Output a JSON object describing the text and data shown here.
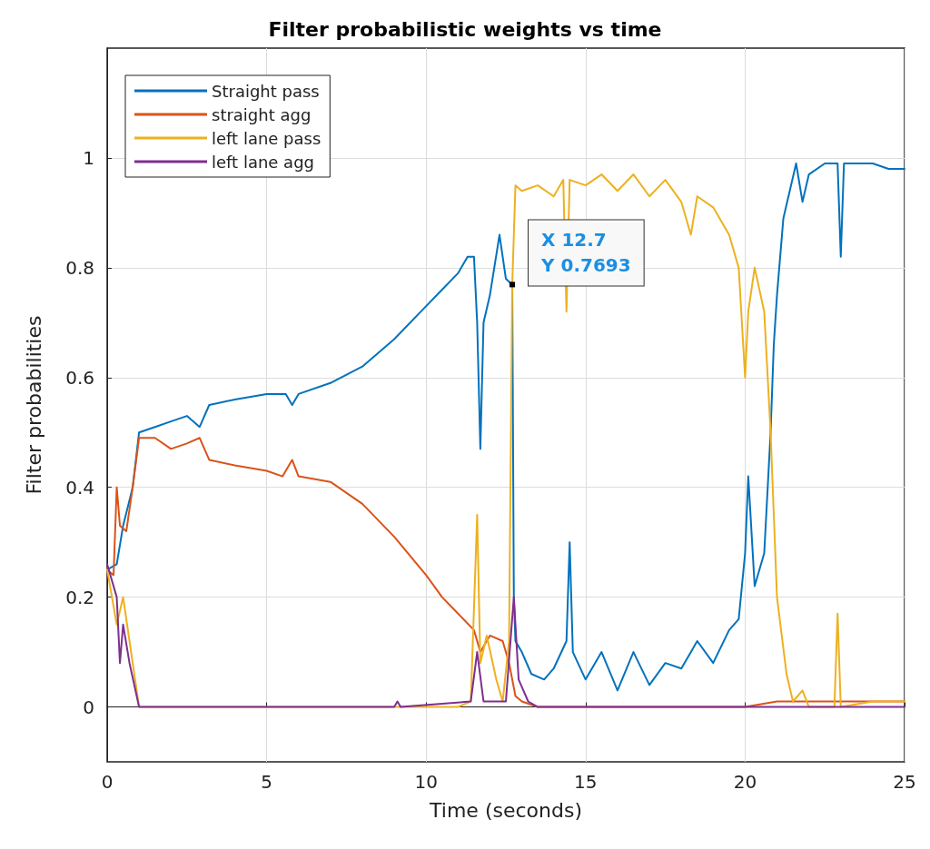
{
  "chart_data": {
    "type": "line",
    "title": "Filter probabilistic weights vs time",
    "xlabel": "Time (seconds)",
    "ylabel": "Filter probabilities",
    "xlim": [
      0,
      25
    ],
    "xticks": [
      0,
      5,
      10,
      15,
      20,
      25
    ],
    "ylim": [
      -0.1,
      1.2
    ],
    "yticks": [
      0,
      0.2,
      0.4,
      0.6,
      0.8,
      1
    ],
    "grid": true,
    "legend": "top left",
    "marker": "none",
    "line_style": "solid",
    "annotations": [
      {
        "text": "X 12.7\nY 0.7693",
        "x": 12.7,
        "y": 0.7693
      }
    ],
    "series": [
      {
        "name": "Straight pass",
        "color": "#0072bd",
        "x": [
          0,
          0.3,
          0.5,
          0.8,
          1,
          1.5,
          2,
          2.5,
          2.9,
          3.2,
          4,
          5,
          5.6,
          5.8,
          6,
          7,
          8,
          9,
          10,
          10.5,
          11,
          11.3,
          11.5,
          11.6,
          11.7,
          11.8,
          12,
          12.3,
          12.5,
          12.7,
          12.75,
          12.8,
          13,
          13.3,
          13.7,
          14,
          14.4,
          14.5,
          14.6,
          15,
          15.5,
          16,
          16.5,
          17,
          17.5,
          18,
          18.5,
          19,
          19.5,
          19.8,
          20,
          20.1,
          20.3,
          20.6,
          20.8,
          20.9,
          21,
          21.2,
          21.4,
          21.6,
          21.8,
          22,
          22.5,
          22.9,
          23,
          23.1,
          24,
          24.5,
          25
        ],
        "values": [
          0.25,
          0.26,
          0.33,
          0.4,
          0.5,
          0.51,
          0.52,
          0.53,
          0.51,
          0.55,
          0.56,
          0.57,
          0.57,
          0.55,
          0.57,
          0.59,
          0.62,
          0.67,
          0.73,
          0.76,
          0.79,
          0.82,
          0.82,
          0.7,
          0.47,
          0.7,
          0.75,
          0.86,
          0.78,
          0.7693,
          0.2,
          0.12,
          0.1,
          0.06,
          0.05,
          0.07,
          0.12,
          0.3,
          0.1,
          0.05,
          0.1,
          0.03,
          0.1,
          0.04,
          0.08,
          0.07,
          0.12,
          0.08,
          0.14,
          0.16,
          0.28,
          0.42,
          0.22,
          0.28,
          0.5,
          0.66,
          0.75,
          0.89,
          0.94,
          0.99,
          0.92,
          0.97,
          0.99,
          0.99,
          0.82,
          0.99,
          0.99,
          0.98,
          0.98
        ]
      },
      {
        "name": "straight agg",
        "color": "#d95319",
        "x": [
          0,
          0.2,
          0.3,
          0.4,
          0.6,
          0.8,
          1,
          1.5,
          2,
          2.5,
          2.9,
          3.2,
          4,
          5,
          5.5,
          5.8,
          6,
          7,
          8,
          9,
          10,
          10.5,
          11,
          11.5,
          11.7,
          12,
          12.4,
          12.6,
          12.8,
          13,
          13.5,
          14,
          20,
          21,
          25
        ],
        "values": [
          0.25,
          0.24,
          0.4,
          0.33,
          0.32,
          0.4,
          0.49,
          0.49,
          0.47,
          0.48,
          0.49,
          0.45,
          0.44,
          0.43,
          0.42,
          0.45,
          0.42,
          0.41,
          0.37,
          0.31,
          0.24,
          0.2,
          0.17,
          0.14,
          0.1,
          0.13,
          0.12,
          0.08,
          0.02,
          0.01,
          0,
          0,
          0,
          0.01,
          0.01
        ]
      },
      {
        "name": "left lane pass",
        "color": "#edb120",
        "x": [
          0,
          0.3,
          0.5,
          0.7,
          1,
          11,
          11.4,
          11.6,
          11.7,
          11.9,
          12.2,
          12.4,
          12.6,
          12.7,
          12.8,
          13,
          13.5,
          14,
          14.3,
          14.4,
          14.5,
          15,
          15.5,
          16,
          16.5,
          17,
          17.5,
          18,
          18.3,
          18.5,
          19,
          19.5,
          19.8,
          20,
          20.1,
          20.3,
          20.6,
          20.8,
          21,
          21.3,
          21.5,
          21.8,
          22,
          22.8,
          22.9,
          23,
          24,
          25
        ],
        "values": [
          0.25,
          0.15,
          0.2,
          0.12,
          0,
          0,
          0.01,
          0.35,
          0.08,
          0.13,
          0.05,
          0.01,
          0.12,
          0.77,
          0.95,
          0.94,
          0.95,
          0.93,
          0.96,
          0.72,
          0.96,
          0.95,
          0.97,
          0.94,
          0.97,
          0.93,
          0.96,
          0.92,
          0.86,
          0.93,
          0.91,
          0.86,
          0.8,
          0.6,
          0.72,
          0.8,
          0.72,
          0.5,
          0.2,
          0.06,
          0.01,
          0.03,
          0,
          0,
          0.17,
          0,
          0.01,
          0.01
        ]
      },
      {
        "name": "left lane agg",
        "color": "#7e2f8e",
        "x": [
          0,
          0.3,
          0.4,
          0.5,
          0.7,
          1,
          9,
          9.1,
          9.2,
          11.4,
          11.6,
          11.8,
          12.5,
          12.75,
          12.9,
          13.2,
          13.5,
          25
        ],
        "values": [
          0.26,
          0.2,
          0.08,
          0.15,
          0.08,
          0,
          0,
          0.01,
          0,
          0.01,
          0.1,
          0.01,
          0.01,
          0.2,
          0.05,
          0.01,
          0,
          0
        ]
      }
    ]
  }
}
